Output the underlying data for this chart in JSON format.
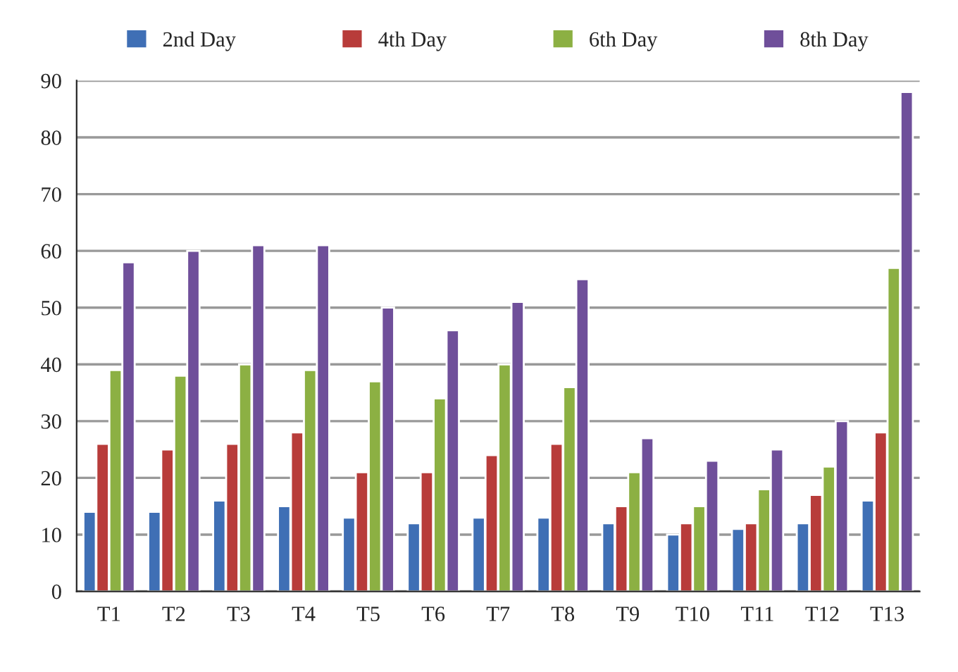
{
  "chart_data": {
    "type": "bar",
    "categories": [
      "T1",
      "T2",
      "T3",
      "T4",
      "T5",
      "T6",
      "T7",
      "T8",
      "T9",
      "T10",
      "T11",
      "T12",
      "T13"
    ],
    "series": [
      {
        "name": "2nd Day",
        "color": "#3f6fb5",
        "values": [
          14,
          14,
          16,
          15,
          13,
          12,
          13,
          13,
          12,
          10,
          11,
          12,
          16
        ]
      },
      {
        "name": "4th Day",
        "color": "#b83c3a",
        "values": [
          26,
          25,
          26,
          28,
          21,
          21,
          24,
          26,
          15,
          12,
          12,
          17,
          28
        ]
      },
      {
        "name": "6th Day",
        "color": "#8cb043",
        "values": [
          39,
          38,
          40,
          39,
          37,
          34,
          40,
          36,
          21,
          15,
          18,
          22,
          57
        ]
      },
      {
        "name": "8th Day",
        "color": "#6f4f9a",
        "values": [
          58,
          60,
          61,
          61,
          50,
          46,
          51,
          55,
          27,
          23,
          25,
          30,
          88
        ]
      }
    ],
    "ylim": [
      0,
      90
    ],
    "yticks": [
      0,
      10,
      20,
      30,
      40,
      50,
      60,
      70,
      80,
      90
    ],
    "grid": "y",
    "legend": "top"
  }
}
